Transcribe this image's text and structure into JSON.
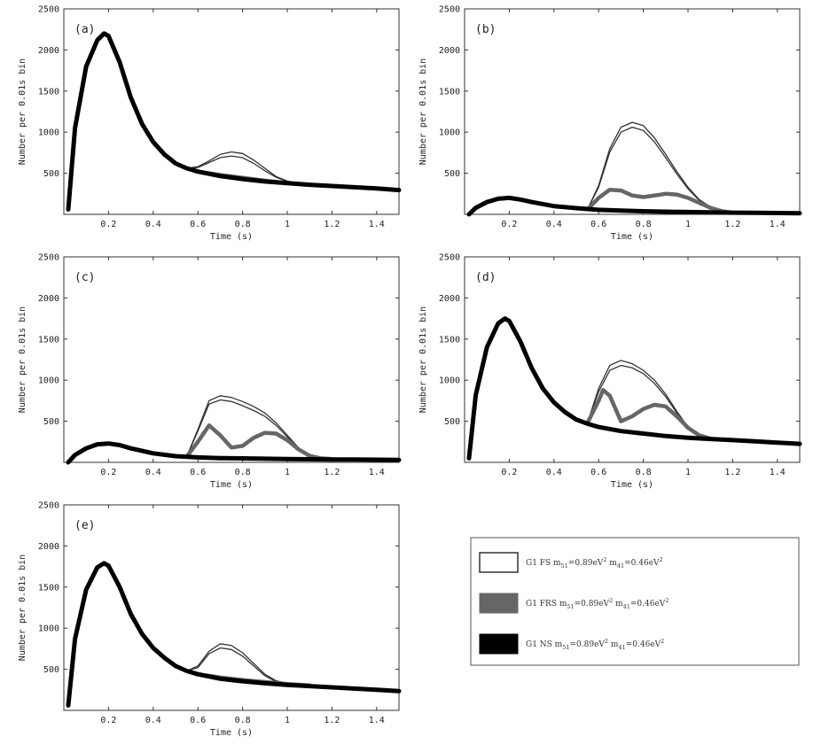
{
  "chart_data": {
    "type": "line",
    "xlabel": "Time (s)",
    "ylabel": "Number per 0.01s bin",
    "xlim": [
      0,
      1.5
    ],
    "ylim": [
      0,
      2500
    ],
    "x_ticks": [
      0.2,
      0.4,
      0.6,
      0.8,
      1,
      1.2,
      1.4
    ],
    "x_tick_labels": [
      "0.2",
      "0.4",
      "0.6",
      "0.8",
      "1",
      "1.2",
      "1.4"
    ],
    "y_ticks": [
      500,
      1000,
      1500,
      2000,
      2500
    ],
    "y_tick_labels": [
      "500",
      "1000",
      "1500",
      "2000",
      "2500"
    ],
    "panels": [
      {
        "label": "(a)",
        "ns": {
          "x": [
            0.02,
            0.05,
            0.1,
            0.15,
            0.18,
            0.2,
            0.25,
            0.3,
            0.35,
            0.4,
            0.45,
            0.5,
            0.55,
            0.6,
            0.7,
            0.8,
            0.9,
            1.0,
            1.1,
            1.2,
            1.3,
            1.4,
            1.5
          ],
          "y": [
            60,
            1050,
            1800,
            2120,
            2200,
            2170,
            1850,
            1420,
            1100,
            880,
            730,
            620,
            560,
            520,
            465,
            430,
            400,
            380,
            360,
            345,
            330,
            315,
            295
          ]
        },
        "frs": {
          "x": [
            0.55,
            0.6,
            0.65,
            0.7,
            0.8,
            0.9,
            1.0,
            1.1
          ],
          "y": [
            560,
            520,
            500,
            480,
            445,
            410,
            380,
            360
          ]
        },
        "fs_upper": {
          "x": [
            0.55,
            0.6,
            0.65,
            0.7,
            0.75,
            0.8,
            0.85,
            0.9,
            0.95,
            1.0,
            1.05,
            1.1
          ],
          "y": [
            560,
            580,
            650,
            730,
            760,
            740,
            660,
            560,
            460,
            405,
            375,
            360
          ]
        },
        "fs_lower": {
          "x": [
            0.55,
            0.6,
            0.65,
            0.7,
            0.75,
            0.8,
            0.85,
            0.9,
            0.95,
            1.0,
            1.05,
            1.1
          ],
          "y": [
            560,
            570,
            630,
            690,
            710,
            690,
            620,
            530,
            450,
            400,
            372,
            360
          ]
        }
      },
      {
        "label": "(b)",
        "ns": {
          "x": [
            0.02,
            0.05,
            0.1,
            0.15,
            0.2,
            0.25,
            0.3,
            0.4,
            0.5,
            0.6,
            0.7,
            0.8,
            0.9,
            1.0,
            1.1,
            1.2,
            1.3,
            1.4,
            1.5
          ],
          "y": [
            0,
            80,
            150,
            190,
            200,
            180,
            150,
            100,
            75,
            55,
            45,
            38,
            32,
            28,
            24,
            20,
            18,
            16,
            14
          ]
        },
        "frs": {
          "x": [
            0.55,
            0.6,
            0.65,
            0.7,
            0.75,
            0.8,
            0.85,
            0.9,
            0.95,
            1.0,
            1.05,
            1.1,
            1.15,
            1.2
          ],
          "y": [
            60,
            200,
            300,
            290,
            230,
            210,
            230,
            250,
            240,
            200,
            140,
            80,
            40,
            20
          ]
        },
        "fs_upper": {
          "x": [
            0.55,
            0.6,
            0.65,
            0.7,
            0.75,
            0.8,
            0.85,
            0.9,
            0.95,
            1.0,
            1.05,
            1.1,
            1.15,
            1.2
          ],
          "y": [
            60,
            350,
            800,
            1060,
            1120,
            1080,
            930,
            730,
            520,
            330,
            180,
            90,
            40,
            20
          ]
        },
        "fs_lower": {
          "x": [
            0.55,
            0.6,
            0.65,
            0.7,
            0.75,
            0.8,
            0.85,
            0.9,
            0.95,
            1.0,
            1.05,
            1.1,
            1.15,
            1.2
          ],
          "y": [
            60,
            330,
            760,
            1000,
            1060,
            1020,
            880,
            690,
            490,
            310,
            170,
            85,
            38,
            20
          ]
        }
      },
      {
        "label": "(c)",
        "ns": {
          "x": [
            0.02,
            0.05,
            0.1,
            0.15,
            0.2,
            0.25,
            0.3,
            0.4,
            0.5,
            0.6,
            0.7,
            0.8,
            0.9,
            1.0,
            1.1,
            1.2,
            1.3,
            1.4,
            1.5
          ],
          "y": [
            0,
            90,
            170,
            220,
            230,
            210,
            170,
            110,
            75,
            60,
            52,
            48,
            44,
            40,
            38,
            36,
            34,
            32,
            30
          ]
        },
        "frs": {
          "x": [
            0.55,
            0.6,
            0.65,
            0.7,
            0.75,
            0.8,
            0.85,
            0.9,
            0.95,
            1.0,
            1.05,
            1.1,
            1.15,
            1.2
          ],
          "y": [
            70,
            250,
            450,
            330,
            180,
            200,
            300,
            360,
            350,
            270,
            160,
            80,
            50,
            40
          ]
        },
        "fs_upper": {
          "x": [
            0.55,
            0.6,
            0.65,
            0.7,
            0.75,
            0.8,
            0.85,
            0.9,
            0.95,
            1.0,
            1.05,
            1.1,
            1.15,
            1.2
          ],
          "y": [
            70,
            400,
            750,
            810,
            790,
            740,
            680,
            600,
            480,
            330,
            180,
            80,
            50,
            40
          ]
        },
        "fs_lower": {
          "x": [
            0.55,
            0.6,
            0.65,
            0.7,
            0.75,
            0.8,
            0.85,
            0.9,
            0.95,
            1.0,
            1.05,
            1.1,
            1.15,
            1.2
          ],
          "y": [
            70,
            380,
            710,
            760,
            740,
            690,
            630,
            560,
            450,
            310,
            170,
            78,
            48,
            40
          ]
        }
      },
      {
        "label": "(d)",
        "ns": {
          "x": [
            0.02,
            0.05,
            0.1,
            0.15,
            0.18,
            0.2,
            0.25,
            0.3,
            0.35,
            0.4,
            0.45,
            0.5,
            0.55,
            0.6,
            0.7,
            0.8,
            0.9,
            1.0,
            1.1,
            1.2,
            1.3,
            1.4,
            1.5
          ],
          "y": [
            50,
            820,
            1400,
            1690,
            1750,
            1720,
            1470,
            1150,
            900,
            730,
            610,
            520,
            470,
            430,
            380,
            350,
            320,
            300,
            285,
            270,
            255,
            240,
            225
          ]
        },
        "frs": {
          "x": [
            0.55,
            0.6,
            0.62,
            0.65,
            0.7,
            0.75,
            0.8,
            0.85,
            0.9,
            0.95,
            1.0,
            1.05,
            1.1
          ],
          "y": [
            480,
            750,
            880,
            810,
            500,
            560,
            650,
            700,
            680,
            560,
            420,
            330,
            290
          ]
        },
        "fs_upper": {
          "x": [
            0.55,
            0.6,
            0.65,
            0.7,
            0.75,
            0.8,
            0.85,
            0.9,
            0.95,
            1.0,
            1.05,
            1.1
          ],
          "y": [
            480,
            900,
            1180,
            1240,
            1200,
            1120,
            1000,
            830,
            620,
            430,
            320,
            290
          ]
        },
        "fs_lower": {
          "x": [
            0.55,
            0.6,
            0.65,
            0.7,
            0.75,
            0.8,
            0.85,
            0.9,
            0.95,
            1.0,
            1.05,
            1.1
          ],
          "y": [
            480,
            860,
            1120,
            1180,
            1150,
            1080,
            960,
            800,
            600,
            420,
            315,
            290
          ]
        }
      },
      {
        "label": "(e)",
        "ns": {
          "x": [
            0.02,
            0.05,
            0.1,
            0.15,
            0.18,
            0.2,
            0.25,
            0.3,
            0.35,
            0.4,
            0.45,
            0.5,
            0.55,
            0.6,
            0.7,
            0.8,
            0.9,
            1.0,
            1.1,
            1.2,
            1.3,
            1.4,
            1.5
          ],
          "y": [
            60,
            870,
            1470,
            1740,
            1790,
            1760,
            1500,
            1170,
            930,
            760,
            640,
            540,
            480,
            440,
            385,
            355,
            330,
            310,
            295,
            280,
            265,
            250,
            235
          ]
        },
        "frs": {
          "x": [
            0.55,
            0.6,
            0.65,
            0.7,
            0.8,
            0.9,
            1.0,
            1.1
          ],
          "y": [
            480,
            440,
            420,
            400,
            370,
            345,
            320,
            305
          ]
        },
        "fs_upper": {
          "x": [
            0.55,
            0.6,
            0.65,
            0.7,
            0.75,
            0.8,
            0.85,
            0.9,
            0.95,
            1.0,
            1.05,
            1.1
          ],
          "y": [
            480,
            540,
            720,
            810,
            790,
            700,
            570,
            440,
            360,
            330,
            315,
            305
          ]
        },
        "fs_lower": {
          "x": [
            0.55,
            0.6,
            0.65,
            0.7,
            0.75,
            0.8,
            0.85,
            0.9,
            0.95,
            1.0,
            1.05,
            1.1
          ],
          "y": [
            480,
            520,
            690,
            760,
            740,
            660,
            540,
            420,
            350,
            325,
            312,
            305
          ]
        }
      }
    ],
    "legend": {
      "location": "bottom-right",
      "entries": [
        {
          "style": "FS",
          "text": "G1 FS  m51=0.89eV2  m41=0.46eV2",
          "prefix": "G1 FS  m",
          "sub1": "51",
          "mid1": "=0.89eV",
          "sup1": "2",
          "mid2": "  m",
          "sub2": "41",
          "mid3": "=0.46eV",
          "sup2": "2"
        },
        {
          "style": "FRS",
          "text": "G1 FRS  m51=0.89eV2  m41=0.46eV2",
          "prefix": "G1 FRS  m",
          "sub1": "51",
          "mid1": "=0.89eV",
          "sup1": "2",
          "mid2": "  m",
          "sub2": "41",
          "mid3": "=0.46eV",
          "sup2": "2"
        },
        {
          "style": "NS",
          "text": "G1 NS   m51=0.89eV2  m41=0.46eV2",
          "prefix": "G1 NS   m",
          "sub1": "51",
          "mid1": "=0.89eV",
          "sup1": "2",
          "mid2": "  m",
          "sub2": "41",
          "mid3": "=0.46eV",
          "sup2": "2"
        }
      ]
    },
    "colors": {
      "ns": "#000000",
      "frs": "#666666",
      "fs_outline": "#333333"
    }
  }
}
